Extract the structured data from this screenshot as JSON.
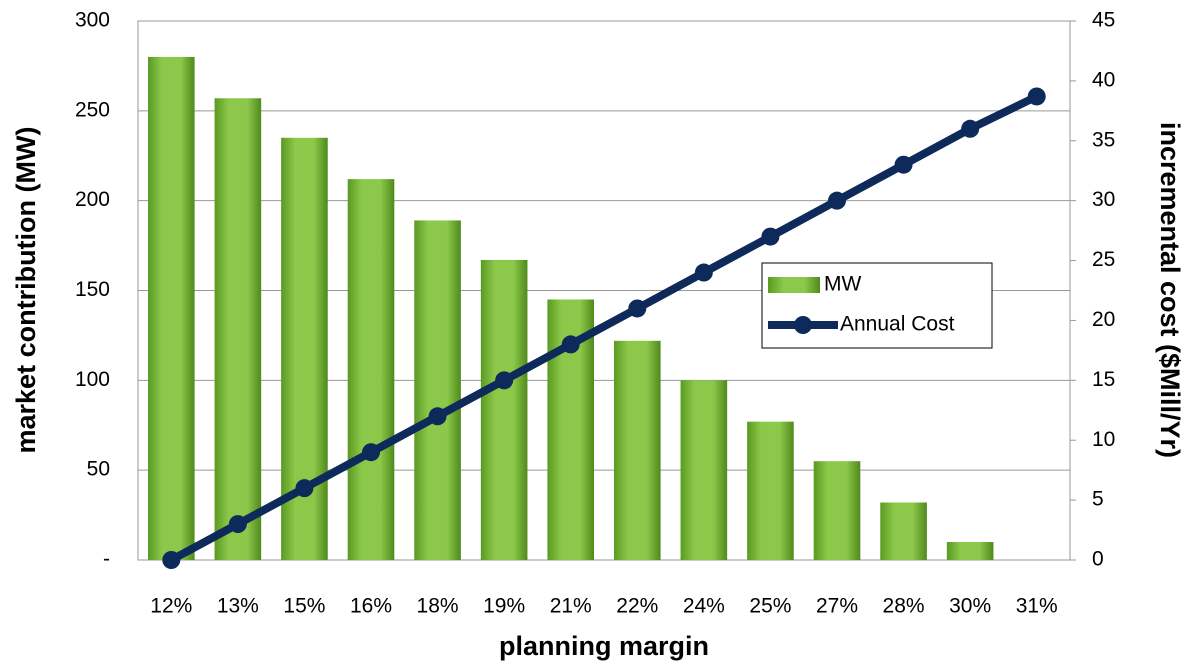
{
  "chart_data": {
    "type": "bar_line",
    "categories": [
      "12%",
      "13%",
      "15%",
      "16%",
      "18%",
      "19%",
      "21%",
      "22%",
      "24%",
      "25%",
      "27%",
      "28%",
      "30%",
      "31%"
    ],
    "series": [
      {
        "name": "MW",
        "type": "bar",
        "color": "#7cba3a",
        "values": [
          280,
          257,
          235,
          212,
          189,
          167,
          145,
          122,
          100,
          77,
          55,
          32,
          10,
          0
        ]
      },
      {
        "name": "Annual Cost",
        "type": "line",
        "axis": "y2",
        "color": "#0e2a5a",
        "values": [
          0,
          3,
          6,
          9,
          12,
          15,
          18,
          21,
          24,
          27,
          30,
          33,
          36,
          38.7
        ]
      }
    ],
    "xlabel": "planning margin",
    "ylabel": "market contribution (MW)",
    "y2label": "incremental cost  ($Mill/Yr)",
    "ylim": [
      0,
      300
    ],
    "yticks": [
      {
        "value": 0,
        "label": "-"
      },
      50,
      100,
      150,
      200,
      250,
      300
    ],
    "y2lim": [
      0,
      45
    ],
    "y2ticks": [
      0,
      5,
      10,
      15,
      20,
      25,
      30,
      35,
      40,
      45
    ],
    "grid": true,
    "legend": "right"
  }
}
